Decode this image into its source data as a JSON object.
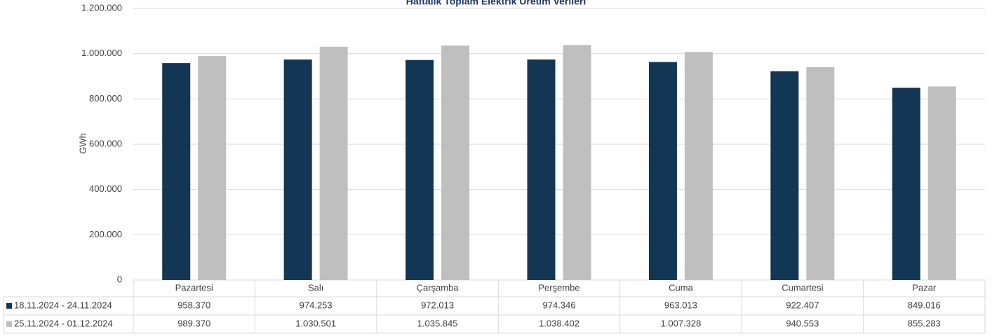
{
  "chart_data": {
    "type": "bar",
    "title": "Haftalık Toplam Elektrik Üretim Verileri",
    "y_label": "GWh",
    "categories": [
      "Pazartesi",
      "Salı",
      "Çarşamba",
      "Perşembe",
      "Cuma",
      "Cumartesi",
      "Pazar"
    ],
    "series": [
      {
        "name": "18.11.2024 - 24.11.2024",
        "color": "#133654",
        "values": [
          958370,
          974253,
          972013,
          974346,
          963013,
          922407,
          849016
        ],
        "value_labels": [
          "958.370",
          "974.253",
          "972.013",
          "974.346",
          "963.013",
          "922.407",
          "849.016"
        ]
      },
      {
        "name": "25.11.2024 - 01.12.2024",
        "color": "#bfbfbf",
        "values": [
          989370,
          1030501,
          1035845,
          1038402,
          1007328,
          940553,
          855283
        ],
        "value_labels": [
          "989.370",
          "1.030.501",
          "1.035.845",
          "1.038.402",
          "1.007.328",
          "940.553",
          "855.283"
        ]
      }
    ],
    "ylim": [
      0,
      1200000
    ],
    "yticks": [
      0,
      {
        "value": 200000,
        "label": "200.000"
      },
      {
        "value": 400000,
        "label": "400.000"
      },
      {
        "value": 600000,
        "label": "600.000"
      },
      {
        "value": 800000,
        "label": "800.000"
      },
      {
        "value": 1000000,
        "label": "1.000.000"
      },
      {
        "value": 1200000,
        "label": "1.200.000"
      }
    ],
    "grid": true
  }
}
